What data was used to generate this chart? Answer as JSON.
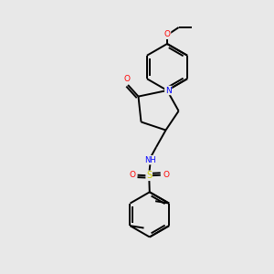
{
  "background_color": "#e8e8e8",
  "bond_color": "#000000",
  "atom_colors": {
    "N": "#0000ff",
    "O": "#ff0000",
    "S": "#cccc00",
    "H": "#4a9090",
    "C": "#000000"
  },
  "figsize": [
    3.0,
    3.0
  ],
  "dpi": 100,
  "lw": 1.4,
  "fs": 6.5
}
